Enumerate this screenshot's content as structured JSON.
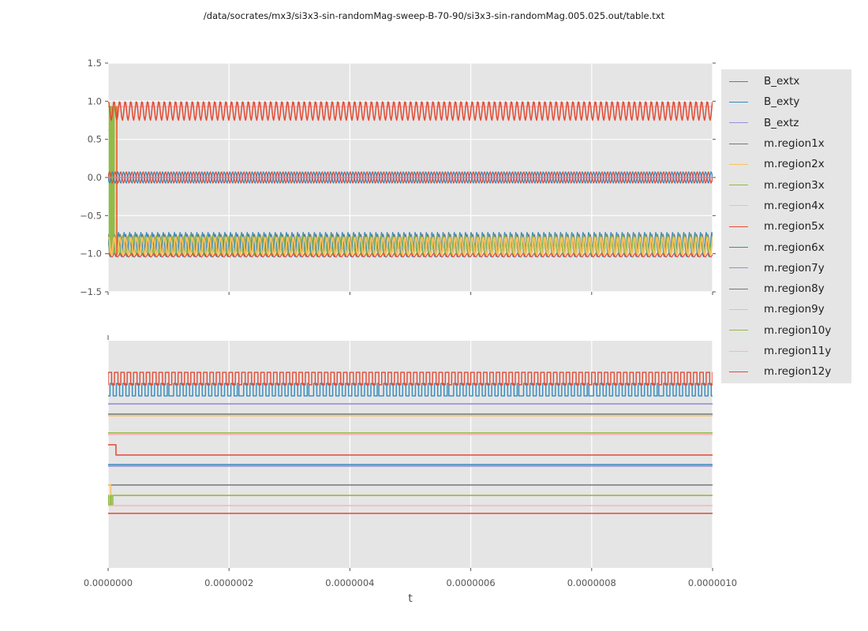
{
  "title": "/data/socrates/mx3/si3x3-sin-randomMag-sweep-B-70-90/si3x3-sin-randomMag.005.025.out/table.txt",
  "xlabel": "t",
  "colors": {
    "panel_background": "#e5e5e5",
    "grid": "#ffffff",
    "tick_text": "#555555",
    "title_text": "#1a1a1a",
    "palette": [
      "#E24A33",
      "#348ABD",
      "#988ED5",
      "#777777",
      "#FBC15E",
      "#8EBA42",
      "#FFB5B8"
    ]
  },
  "legend": {
    "entries": [
      {
        "label": "B_extx",
        "color": "#E24A33"
      },
      {
        "label": "B_exty",
        "color": "#348ABD"
      },
      {
        "label": "B_extz",
        "color": "#988ED5"
      },
      {
        "label": "m.region1x",
        "color": "#777777"
      },
      {
        "label": "m.region2x",
        "color": "#FBC15E"
      },
      {
        "label": "m.region3x",
        "color": "#8EBA42"
      },
      {
        "label": "m.region4x",
        "color": "#FFB5B8"
      },
      {
        "label": "m.region5x",
        "color": "#E24A33"
      },
      {
        "label": "m.region6x",
        "color": "#348ABD"
      },
      {
        "label": "m.region7y",
        "color": "#988ED5"
      },
      {
        "label": "m.region8y",
        "color": "#777777"
      },
      {
        "label": "m.region9y",
        "color": "#FBC15E"
      },
      {
        "label": "m.region10y",
        "color": "#8EBA42"
      },
      {
        "label": "m.region11y",
        "color": "#FFB5B8"
      },
      {
        "label": "m.region12y",
        "color": "#E24A33"
      }
    ]
  },
  "chart_data": [
    {
      "name": "top-plot",
      "type": "line",
      "xlim": [
        0,
        1e-06
      ],
      "xticks": [
        0,
        2e-07,
        4e-07,
        6e-07,
        8e-07,
        1e-06
      ],
      "xtick_labels": [
        "0.0000000",
        "0.0000002",
        "0.0000004",
        "0.0000006",
        "0.0000008",
        "0.0000010"
      ],
      "show_xtick_labels": false,
      "ylim": [
        -1.5,
        1.5
      ],
      "yticks": [
        -1.5,
        -1.0,
        -0.5,
        0.0,
        0.5,
        1.0,
        1.5
      ],
      "ytick_labels": [
        "−1.5",
        "−1.0",
        "−0.5",
        "0.0",
        "0.5",
        "1.0",
        "1.5"
      ],
      "grid_x": true,
      "grid_y": true,
      "corner_tick": false,
      "series": [
        {
          "name": "m.region4x",
          "color": "#FFB5B8",
          "width": 1.5,
          "gen": {
            "type": "polyline",
            "points": [
              [
                0,
                0.62
              ],
              [
                4e-09,
                0.62
              ],
              [
                1e-08,
                0.93
              ],
              [
                1e-06,
                0.93
              ]
            ]
          }
        },
        {
          "name": "m.region1x",
          "color": "#777777",
          "width": 1.3,
          "gen": {
            "type": "sine",
            "center": -0.875,
            "amp": 0.13,
            "cycles": 108,
            "phase": 0.6
          }
        },
        {
          "name": "m.region6x",
          "color": "#348ABD",
          "width": 1.3,
          "gen": {
            "type": "sine",
            "center": -0.885,
            "amp": 0.165,
            "cycles": 108,
            "phase": 2.4
          }
        },
        {
          "name": "m.region3x",
          "color": "#8EBA42",
          "width": 1.3,
          "gen": {
            "type": "sine",
            "center": -0.89,
            "amp": 0.135,
            "cycles": 106,
            "phase": 1.8,
            "t0": 1.5e-08
          }
        },
        {
          "name": "m.region3x-transient",
          "color": "#8EBA42",
          "width": 1.5,
          "gen": {
            "type": "polyline",
            "points": [
              [
                0,
                0.93
              ],
              [
                2e-09,
                0.93
              ],
              [
                2e-09,
                -1.0
              ],
              [
                4e-09,
                -1.0
              ],
              [
                4e-09,
                0.93
              ],
              [
                6e-09,
                0.93
              ],
              [
                6e-09,
                -1.0
              ],
              [
                8e-09,
                -1.0
              ],
              [
                8e-09,
                0.93
              ],
              [
                1e-08,
                0.93
              ],
              [
                1e-08,
                -1.0
              ],
              [
                1.2e-08,
                -1.0
              ],
              [
                1.2e-08,
                -0.95
              ],
              [
                1.5e-08,
                -0.95
              ]
            ]
          }
        },
        {
          "name": "m.region2x",
          "color": "#FBC15E",
          "width": 1.8,
          "gen": {
            "type": "sine",
            "center": -0.9,
            "amp": 0.12,
            "cycles": 108,
            "phase": 1.0
          }
        },
        {
          "name": "m.region12y",
          "color": "#E24A33",
          "width": 1.2,
          "gen": {
            "type": "sine",
            "center": -1.02,
            "amp": 0.025,
            "cycles": 108,
            "phase": 0.5
          }
        },
        {
          "name": "m.region2x-transient",
          "color": "#FBC15E",
          "width": 1.4,
          "gen": {
            "type": "polyline",
            "points": [
              [
                1.25e-08,
                0.93
              ],
              [
                1.32e-08,
                0.93
              ],
              [
                1.32e-08,
                -1.0
              ]
            ]
          }
        },
        {
          "name": "m.region5x-transient",
          "color": "#E24A33",
          "width": 1.4,
          "gen": {
            "type": "polyline",
            "points": [
              [
                1.38e-08,
                0.93
              ],
              [
                1.45e-08,
                0.93
              ],
              [
                1.45e-08,
                -1.02
              ]
            ]
          }
        },
        {
          "name": "B_exty",
          "color": "#348ABD",
          "width": 1.3,
          "gen": {
            "type": "sine",
            "center": 0.0,
            "amp": 0.075,
            "cycles": 108,
            "phase": 3.1416
          }
        },
        {
          "name": "m.region5x",
          "color": "#E24A33",
          "width": 1.3,
          "gen": {
            "type": "sine",
            "center": 0.0,
            "amp": 0.075,
            "cycles": 108,
            "phase": 0
          }
        },
        {
          "name": "B_extz",
          "color": "#988ED5",
          "width": 1.5,
          "gen": {
            "type": "flat",
            "level": 0.0
          }
        },
        {
          "name": "B_extx",
          "color": "#E24A33",
          "width": 1.5,
          "gen": {
            "type": "sine",
            "center": 0.875,
            "amp": 0.125,
            "cycles": 108,
            "phase": 1.2
          }
        }
      ]
    },
    {
      "name": "bottom-plot",
      "type": "line",
      "xlim": [
        0,
        1e-06
      ],
      "xticks": [
        0,
        2e-07,
        4e-07,
        6e-07,
        8e-07,
        1e-06
      ],
      "xtick_labels": [
        "0.0000000",
        "0.0000002",
        "0.0000004",
        "0.0000006",
        "0.0000008",
        "0.0000010"
      ],
      "show_xtick_labels": true,
      "ylim": [
        1,
        0
      ],
      "y_units": "relative-position (no y tick labels shown in figure)",
      "yticks": [],
      "ytick_labels": [],
      "grid_x": true,
      "grid_y": false,
      "corner_tick": true,
      "series": [
        {
          "name": "square-wave-blue",
          "color": "#348ABD",
          "width": 1.4,
          "gen": {
            "type": "square",
            "high": 0.188,
            "low": 0.243,
            "cycles": 95,
            "duty": 0.5,
            "phase": 0.3,
            "long_low_every": 11
          }
        },
        {
          "name": "square-wave-red",
          "color": "#E24A33",
          "width": 1.4,
          "gen": {
            "type": "square",
            "high": 0.139,
            "low": 0.194,
            "cycles": 95,
            "duty": 0.55,
            "phase": 0
          }
        },
        {
          "name": "flat-purple-upper",
          "color": "#988ED5",
          "width": 1.6,
          "gen": {
            "type": "flat",
            "level": 0.278
          }
        },
        {
          "name": "flat-orange-upper",
          "color": "#FBC15E",
          "width": 1.6,
          "gen": {
            "type": "flat",
            "level": 0.33
          }
        },
        {
          "name": "flat-gray-upper",
          "color": "#777777",
          "width": 1.5,
          "gen": {
            "type": "flat",
            "level": 0.323
          }
        },
        {
          "name": "flat-pink-upper",
          "color": "#FFB5B8",
          "width": 1.6,
          "gen": {
            "type": "flat",
            "level": 0.413
          }
        },
        {
          "name": "flat-green-upper",
          "color": "#8EBA42",
          "width": 1.5,
          "gen": {
            "type": "flat",
            "level": 0.406
          }
        },
        {
          "name": "red-step-down",
          "color": "#E24A33",
          "width": 1.5,
          "gen": {
            "type": "polyline",
            "points": [
              [
                0,
                0.458
              ],
              [
                1.3e-08,
                0.458
              ],
              [
                1.3e-08,
                0.503
              ],
              [
                1e-06,
                0.503
              ]
            ]
          }
        },
        {
          "name": "flat-purple-mid",
          "color": "#988ED5",
          "width": 1.6,
          "gen": {
            "type": "flat",
            "level": 0.552
          }
        },
        {
          "name": "flat-blue-mid",
          "color": "#348ABD",
          "width": 1.5,
          "gen": {
            "type": "flat",
            "level": 0.545
          }
        },
        {
          "name": "flat-gray-lower",
          "color": "#777777",
          "width": 1.5,
          "gen": {
            "type": "flat",
            "level": 0.635
          }
        },
        {
          "name": "orange-step-down",
          "color": "#FBC15E",
          "width": 1.5,
          "gen": {
            "type": "polyline",
            "points": [
              [
                0,
                0.635
              ],
              [
                4.5e-09,
                0.635
              ],
              [
                4.5e-09,
                0.681
              ],
              [
                1e-06,
                0.681
              ]
            ]
          }
        },
        {
          "name": "green-pulses",
          "color": "#8EBA42",
          "width": 1.5,
          "gen": {
            "type": "polyline",
            "points": [
              [
                0,
                0.681
              ],
              [
                1e-09,
                0.681
              ],
              [
                1e-09,
                0.722
              ],
              [
                3.8e-09,
                0.722
              ],
              [
                3.8e-09,
                0.681
              ],
              [
                5.2e-09,
                0.681
              ],
              [
                5.2e-09,
                0.722
              ],
              [
                7.8e-09,
                0.722
              ],
              [
                7.8e-09,
                0.681
              ],
              [
                1e-06,
                0.681
              ]
            ]
          }
        },
        {
          "name": "flat-pink-lower",
          "color": "#FFB5B8",
          "width": 1.6,
          "gen": {
            "type": "flat",
            "level": 0.726
          }
        },
        {
          "name": "flat-red-lower",
          "color": "#E24A33",
          "width": 1.5,
          "gen": {
            "type": "flat",
            "level": 0.76
          }
        }
      ]
    }
  ]
}
